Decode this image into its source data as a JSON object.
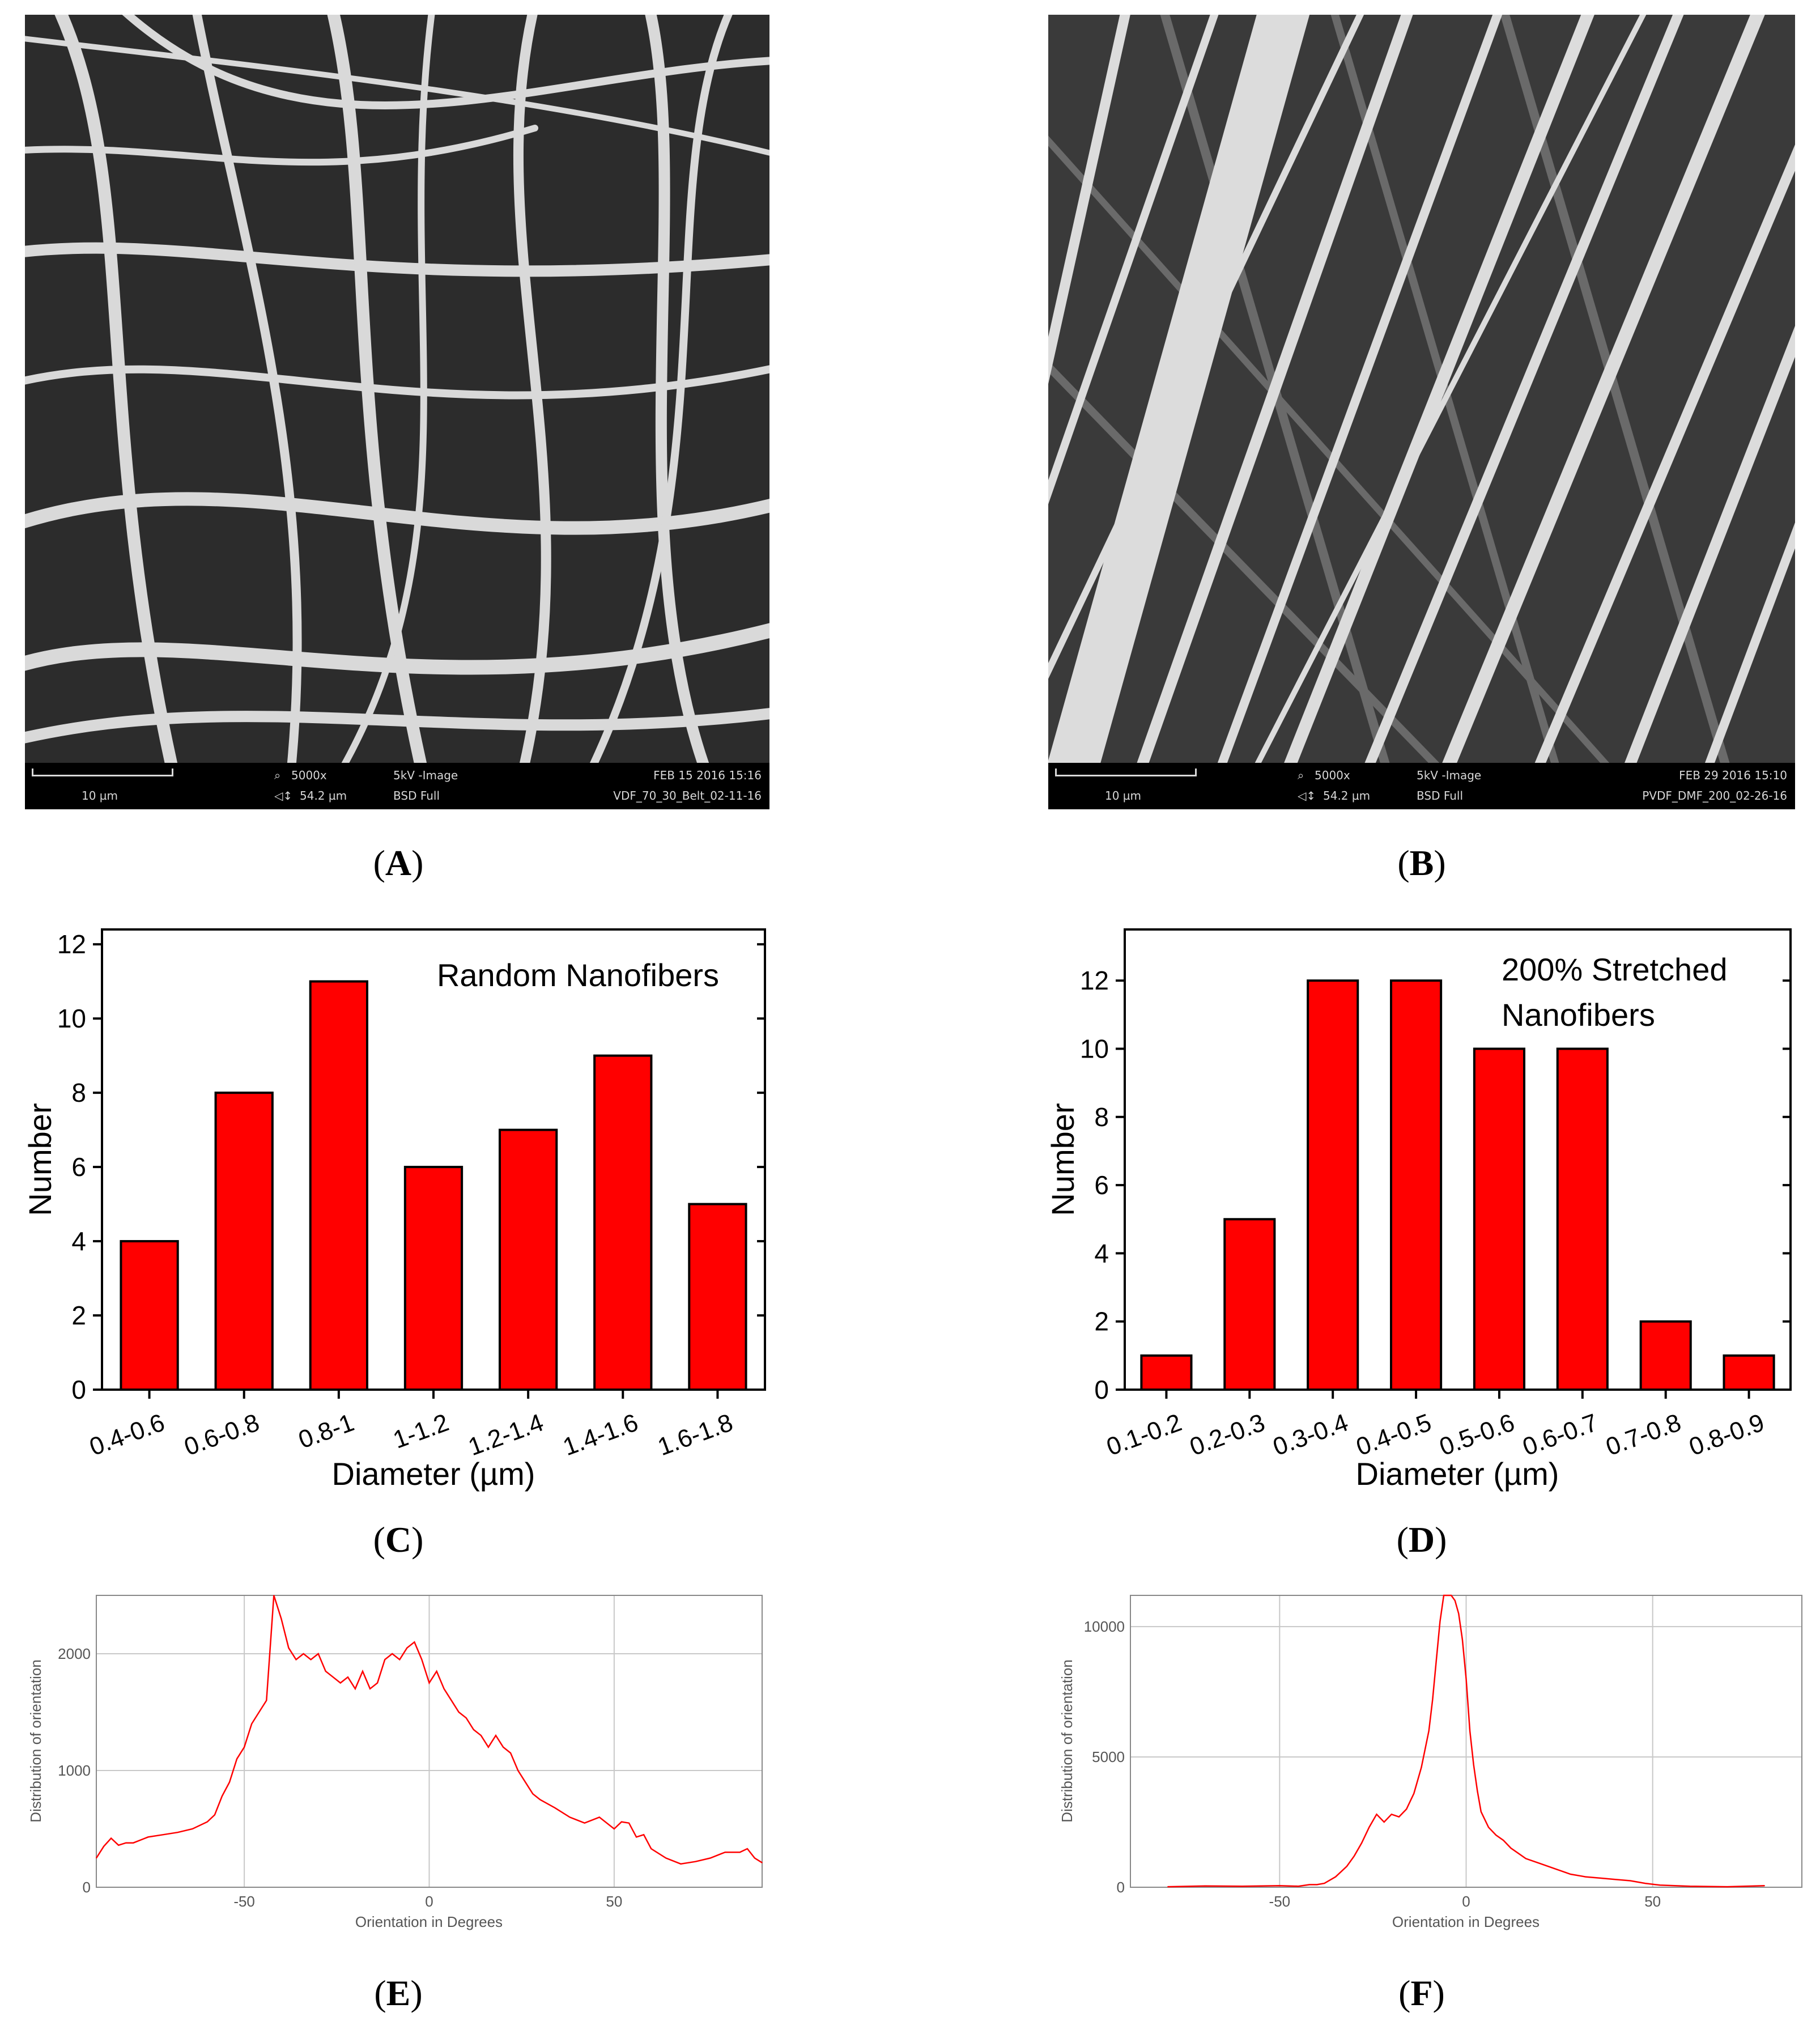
{
  "panels": {
    "A": {
      "label_open": "(",
      "letter": "A",
      "label_close": ")",
      "sem": {
        "scale": "10 µm",
        "mag": "5000x",
        "hv": "5kV -Image",
        "date": "FEB 15 2016 15:16",
        "fov": "54.2 µm",
        "detector": "BSD Full",
        "sample": "VDF_70_30_Belt_02-11-16"
      }
    },
    "B": {
      "label_open": "(",
      "letter": "B",
      "label_close": ")",
      "sem": {
        "scale": "10 µm",
        "mag": "5000x",
        "hv": "5kV -Image",
        "date": "FEB 29 2016 15:10",
        "fov": "54.2 µm",
        "detector": "BSD Full",
        "sample": "PVDF_DMF_200_02-26-16"
      }
    },
    "C": {
      "label_open": "(",
      "letter": "C",
      "label_close": ")"
    },
    "D": {
      "label_open": "(",
      "letter": "D",
      "label_close": ")"
    },
    "E": {
      "label_open": "(",
      "letter": "E",
      "label_close": ")"
    },
    "F": {
      "label_open": "(",
      "letter": "F",
      "label_close": ")"
    }
  },
  "colors": {
    "bar": "#ff0000",
    "line": "#ff0000",
    "grid": "#c8c8c8",
    "sem_bg": "#2a2a2a"
  },
  "chart_data": [
    {
      "id": "C",
      "type": "bar",
      "title": "Random Nanofibers",
      "xlabel": "Diameter (µm)",
      "ylabel": "Number",
      "categories": [
        "0.4-0.6",
        "0.6-0.8",
        "0.8-1",
        "1-1.2",
        "1.2-1.4",
        "1.4-1.6",
        "1.6-1.8"
      ],
      "values": [
        4,
        8,
        11,
        6,
        7,
        9,
        5
      ],
      "ylim": [
        0,
        12.4
      ],
      "yticks": [
        0,
        2,
        4,
        6,
        8,
        10,
        12
      ]
    },
    {
      "id": "D",
      "type": "bar",
      "title": "200% Stretched",
      "title_line2": "Nanofibers",
      "xlabel": "Diameter (µm)",
      "ylabel": "Number",
      "categories": [
        "0.1-0.2",
        "0.2-0.3",
        "0.3-0.4",
        "0.4-0.5",
        "0.5-0.6",
        "0.6-0.7",
        "0.7-0.8",
        "0.8-0.9"
      ],
      "values": [
        1,
        5,
        12,
        12,
        10,
        10,
        2,
        1
      ],
      "ylim": [
        0,
        13.5
      ],
      "yticks": [
        0,
        2,
        4,
        6,
        8,
        10,
        12
      ]
    },
    {
      "id": "E",
      "type": "line",
      "xlabel": "Orientation in Degrees",
      "ylabel": "Distribution of orientation",
      "xlim": [
        -90,
        90
      ],
      "ylim": [
        0,
        2500
      ],
      "xticks": [
        -50,
        0,
        50
      ],
      "xtick_labels": [
        "-50",
        "0",
        "50"
      ],
      "yticks": [
        0,
        1000,
        2000
      ],
      "ytick_labels": [
        "0",
        "1000",
        "2000"
      ],
      "x": [
        -90,
        -88,
        -86,
        -84,
        -82,
        -80,
        -76,
        -72,
        -68,
        -64,
        -60,
        -58,
        -56,
        -54,
        -52,
        -50,
        -48,
        -46,
        -44,
        -42,
        -40,
        -38,
        -36,
        -34,
        -32,
        -30,
        -28,
        -26,
        -24,
        -22,
        -20,
        -18,
        -16,
        -14,
        -12,
        -10,
        -8,
        -6,
        -4,
        -2,
        0,
        2,
        4,
        6,
        8,
        10,
        12,
        14,
        16,
        18,
        20,
        22,
        24,
        26,
        28,
        30,
        34,
        38,
        42,
        46,
        50,
        52,
        54,
        56,
        58,
        60,
        64,
        68,
        72,
        76,
        80,
        84,
        86,
        88,
        90
      ],
      "y": [
        250,
        350,
        420,
        360,
        380,
        380,
        430,
        450,
        470,
        500,
        560,
        620,
        780,
        900,
        1100,
        1200,
        1400,
        1500,
        1600,
        2500,
        2300,
        2050,
        1950,
        2000,
        1950,
        2000,
        1850,
        1800,
        1750,
        1800,
        1700,
        1850,
        1700,
        1750,
        1950,
        2000,
        1950,
        2050,
        2100,
        1950,
        1750,
        1850,
        1700,
        1600,
        1500,
        1450,
        1350,
        1300,
        1200,
        1300,
        1200,
        1150,
        1000,
        900,
        800,
        750,
        680,
        600,
        550,
        600,
        500,
        560,
        550,
        430,
        450,
        330,
        250,
        200,
        220,
        250,
        300,
        300,
        330,
        250,
        210
      ]
    },
    {
      "id": "F",
      "type": "line",
      "xlabel": "Orientation in Degrees",
      "ylabel": "Distribution of orientation",
      "xlim": [
        -90,
        90
      ],
      "ylim": [
        0,
        11200
      ],
      "xticks": [
        -50,
        0,
        50
      ],
      "xtick_labels": [
        "-50",
        "0",
        "50"
      ],
      "yticks": [
        0,
        5000,
        10000
      ],
      "ytick_labels": [
        "0",
        "5000",
        "10000"
      ],
      "x": [
        -80,
        -70,
        -60,
        -50,
        -45,
        -42,
        -40,
        -38,
        -35,
        -32,
        -30,
        -28,
        -26,
        -24,
        -22,
        -20,
        -18,
        -16,
        -14,
        -12,
        -10,
        -9,
        -8,
        -7,
        -6,
        -5,
        -4,
        -3,
        -2,
        -1,
        0,
        1,
        2,
        3,
        4,
        6,
        8,
        10,
        12,
        14,
        16,
        20,
        24,
        28,
        32,
        36,
        40,
        44,
        48,
        52,
        60,
        70,
        80
      ],
      "y": [
        20,
        50,
        40,
        60,
        40,
        100,
        100,
        150,
        400,
        800,
        1200,
        1700,
        2300,
        2800,
        2500,
        2800,
        2700,
        3000,
        3600,
        4600,
        6000,
        7200,
        8700,
        10200,
        11200,
        11300,
        11200,
        11000,
        10500,
        9500,
        8000,
        6000,
        4700,
        3700,
        2900,
        2300,
        2000,
        1800,
        1500,
        1300,
        1100,
        900,
        700,
        500,
        400,
        350,
        300,
        250,
        150,
        80,
        40,
        20,
        60
      ]
    }
  ]
}
